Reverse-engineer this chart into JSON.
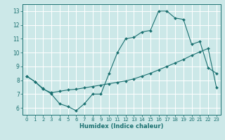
{
  "xlabel": "Humidex (Indice chaleur)",
  "background_color": "#cce8e8",
  "grid_color": "#ffffff",
  "line_color": "#1a7070",
  "xlim": [
    -0.5,
    23.5
  ],
  "ylim": [
    5.5,
    13.5
  ],
  "xticks": [
    0,
    1,
    2,
    3,
    4,
    5,
    6,
    7,
    8,
    9,
    10,
    11,
    12,
    13,
    14,
    15,
    16,
    17,
    18,
    19,
    20,
    21,
    22,
    23
  ],
  "yticks": [
    6,
    7,
    8,
    9,
    10,
    11,
    12,
    13
  ],
  "line1_x": [
    0,
    1,
    2,
    3,
    4,
    5,
    6,
    7,
    8,
    9,
    10,
    11,
    12,
    13,
    14,
    15,
    16,
    17,
    18,
    19,
    20,
    21,
    22,
    23
  ],
  "line1_y": [
    8.3,
    7.9,
    7.4,
    7.0,
    6.3,
    6.1,
    5.8,
    6.3,
    7.0,
    7.0,
    8.5,
    10.0,
    11.0,
    11.1,
    11.5,
    11.6,
    13.0,
    13.0,
    12.5,
    12.4,
    10.6,
    10.8,
    8.9,
    8.5
  ],
  "line2_x": [
    0,
    1,
    2,
    3,
    4,
    5,
    6,
    7,
    8,
    9,
    10,
    11,
    12,
    13,
    14,
    15,
    16,
    17,
    18,
    19,
    20,
    21,
    22,
    23
  ],
  "line2_y": [
    8.3,
    7.9,
    7.35,
    7.1,
    7.2,
    7.3,
    7.35,
    7.45,
    7.55,
    7.65,
    7.75,
    7.85,
    7.95,
    8.1,
    8.3,
    8.5,
    8.75,
    9.0,
    9.25,
    9.5,
    9.8,
    10.05,
    10.3,
    7.5
  ]
}
